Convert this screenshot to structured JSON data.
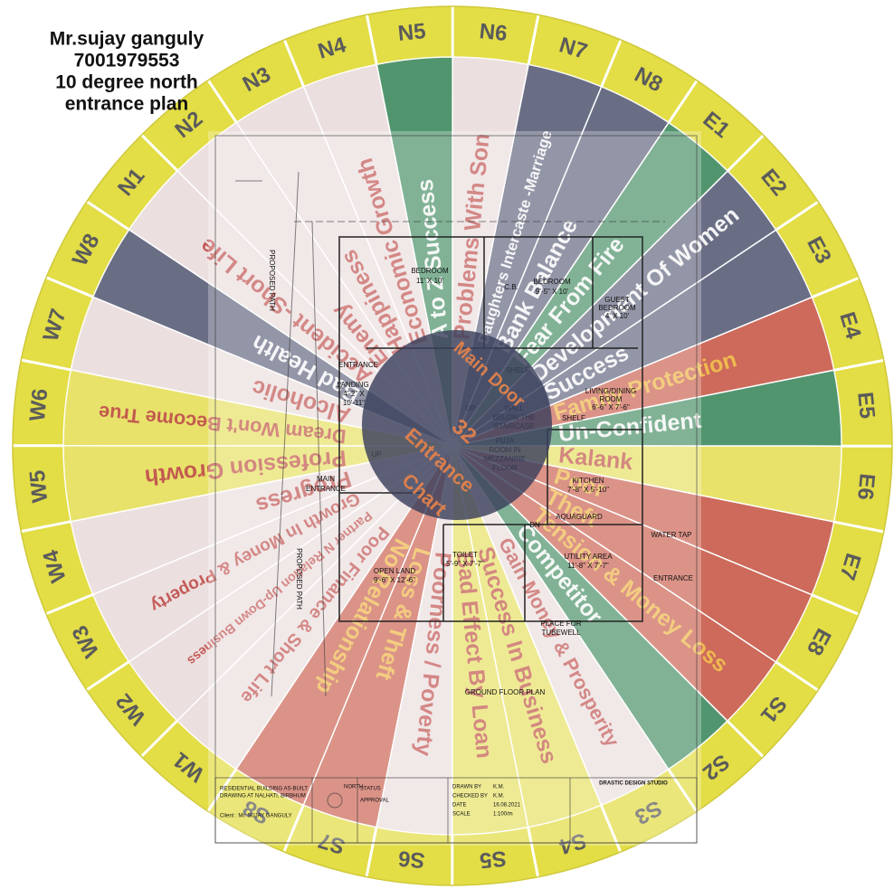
{
  "header": {
    "lines": [
      "Mr.sujay ganguly",
      "7001979553",
      "10 degree north",
      "entrance plan"
    ]
  },
  "zones": [
    {
      "code": "N1",
      "meaning": "Accident -Short Life",
      "color": "#eadcdc",
      "text_color": "#c0504d"
    },
    {
      "code": "N2",
      "meaning": "Enemy",
      "color": "#eadcdc",
      "text_color": "#c0504d"
    },
    {
      "code": "N3",
      "meaning": "Happiness",
      "color": "#eadcdc",
      "text_color": "#c0504d"
    },
    {
      "code": "N4",
      "meaning": "Economic Growth",
      "color": "#eadcdc",
      "text_color": "#c0504d"
    },
    {
      "code": "N5",
      "meaning": "A to Z Success",
      "color": "#3f8a5f",
      "text_color": "#ffffff"
    },
    {
      "code": "N6",
      "meaning": "Problems With Son",
      "color": "#eadcdc",
      "text_color": "#c0504d"
    },
    {
      "code": "N7",
      "meaning": "Daughters Intercaste -Marriage",
      "color": "#5a5f78",
      "text_color": "#ffffff"
    },
    {
      "code": "N8",
      "meaning": "Bank Balance",
      "color": "#5a5f78",
      "text_color": "#ffffff"
    },
    {
      "code": "E1",
      "meaning": "Fear From Fire",
      "color": "#3f8a5f",
      "text_color": "#ffffff"
    },
    {
      "code": "E2",
      "meaning": "Development Of Women",
      "color": "#5a5f78",
      "text_color": "#ffffff"
    },
    {
      "code": "E3",
      "meaning": "Success",
      "color": "#5a5f78",
      "text_color": "#ffffff"
    },
    {
      "code": "E4",
      "meaning": "Family Protection",
      "color": "#c85a4a",
      "text_color": "#f2c14e"
    },
    {
      "code": "E5",
      "meaning": "Un-Confident",
      "color": "#3f8a5f",
      "text_color": "#ffffff"
    },
    {
      "code": "E6",
      "meaning": "Kalank",
      "color": "#e6df5c",
      "text_color": "#c0504d"
    },
    {
      "code": "E7",
      "meaning": "Poor",
      "color": "#c85a4a",
      "text_color": "#f2c14e"
    },
    {
      "code": "E8",
      "meaning": "Theft",
      "color": "#c85a4a",
      "text_color": "#f2c14e"
    },
    {
      "code": "S1",
      "meaning": "Tension & Money Loss",
      "color": "#c85a4a",
      "text_color": "#f2c14e"
    },
    {
      "code": "S2",
      "meaning": "Competitor",
      "color": "#3f8a5f",
      "text_color": "#ffffff"
    },
    {
      "code": "S3",
      "meaning": "Gain Money & Prosperity",
      "color": "#eadcdc",
      "text_color": "#c0504d"
    },
    {
      "code": "S4",
      "meaning": "Success In Business",
      "color": "#e6df5c",
      "text_color": "#c0504d"
    },
    {
      "code": "S5",
      "meaning": "Bad Effect By Loan",
      "color": "#e6df5c",
      "text_color": "#c0504d"
    },
    {
      "code": "S6",
      "meaning": "Poorness / Poverty",
      "color": "#eadcdc",
      "text_color": "#c0504d"
    },
    {
      "code": "S7",
      "meaning": "Loss & Theft",
      "color": "#c85a4a",
      "text_color": "#f2c14e"
    },
    {
      "code": "S8",
      "meaning": "No Relationship",
      "color": "#c85a4a",
      "text_color": "#f2c14e"
    },
    {
      "code": "W1",
      "meaning": "Poor Finance & Short Life",
      "color": "#eadcdc",
      "text_color": "#c0504d"
    },
    {
      "code": "W2",
      "meaning": "Partner N Relation Up-Down Business",
      "color": "#eadcdc",
      "text_color": "#c0504d"
    },
    {
      "code": "W3",
      "meaning": "Growth In Money & Property",
      "color": "#eadcdc",
      "text_color": "#c0504d"
    },
    {
      "code": "W4",
      "meaning": "Progress",
      "color": "#eadcdc",
      "text_color": "#c0504d"
    },
    {
      "code": "W5",
      "meaning": "Profession Growth",
      "color": "#e6df5c",
      "text_color": "#c0504d"
    },
    {
      "code": "W6",
      "meaning": "Dream Won't Become True",
      "color": "#e6df5c",
      "text_color": "#c0504d"
    },
    {
      "code": "W7",
      "meaning": "Alcoholic",
      "color": "#eadcdc",
      "text_color": "#c0504d"
    },
    {
      "code": "W8",
      "meaning": "Bad Health",
      "color": "#5a5f78",
      "text_color": "#ffffff"
    }
  ],
  "center": {
    "lines": [
      "Main Door",
      "32",
      "Entrance",
      "Chart"
    ]
  },
  "plan": {
    "labels": [
      "BEDROOM",
      "11' X 10'",
      "BEDROOM",
      "9'-5\" X 10'",
      "GUEST",
      "BEDROOM",
      "4' X 10'",
      "C.B.",
      "SHELF",
      "LIVING/DINING",
      "ROOM",
      "6'-6\" X 7'-6\"",
      "ENTRANCE",
      "LANDING",
      "4'-2\" X",
      "10'-11\"",
      "WALL",
      "BELOW THE",
      "STAIRCASE",
      "PUJA",
      "ROOM IN",
      "MEZZANINE",
      "FLOOR",
      "UP",
      "UP",
      "KITCHEN",
      "7'-8\" X 5'-10\"",
      "SHELF",
      "AQUAGUARD",
      "DN",
      "MAIN",
      "ENTRANCE",
      "TOILET",
      "5'-9\" X 7'-7\"",
      "UTILITY AREA",
      "11'-8\" X 7'-7\"",
      "WATER TAP",
      "ENTRANCE",
      "OPEN LAND",
      "9'-6\" X 12'-6\"",
      "PLACE FOR",
      "TUBEWELL",
      "GROUND FLOOR PLAN",
      "PROPOSED PATH",
      "PROPOSED PATH"
    ],
    "title_block": [
      "RESIDENTIAL BUILDING AS-BUILT",
      "DRAWING AT NALHATI, BIRBHUM",
      "Client : Mr. SUJAY GANGULY",
      "NORTH",
      "STATUS",
      "APPROVAL",
      "DRAWN BY",
      "K.M.",
      "CHECKED BY",
      "K.M.",
      "DATE",
      "16.08.2021",
      "SCALE",
      "1:100/m",
      "DRASTIC DESIGN STUDIO"
    ]
  }
}
